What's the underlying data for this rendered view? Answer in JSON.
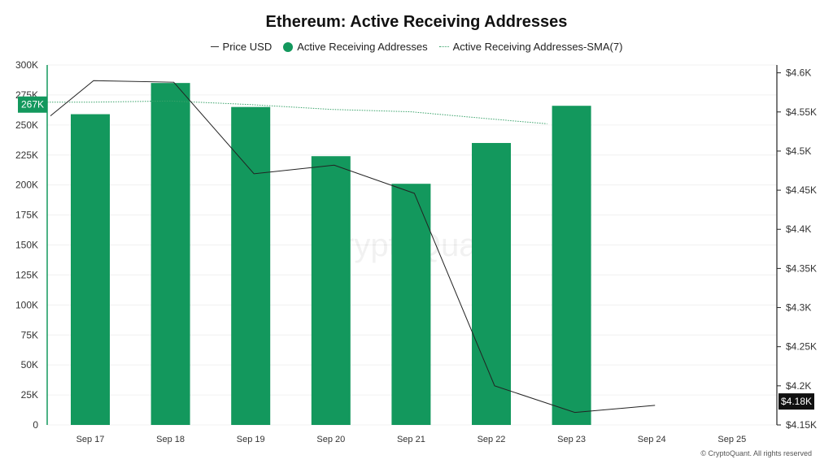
{
  "chart_data": {
    "type": "bar",
    "title": "Ethereum: Active Receiving Addresses",
    "categories": [
      "Sep 17",
      "Sep 18",
      "Sep 19",
      "Sep 20",
      "Sep 21",
      "Sep 22",
      "Sep 23",
      "Sep 24",
      "Sep 25"
    ],
    "series": [
      {
        "name": "Active Receiving Addresses",
        "type": "bar",
        "axis": "left",
        "color": "#13985d",
        "values": [
          259000,
          285000,
          265000,
          224000,
          201000,
          235000,
          266000,
          null,
          null
        ]
      },
      {
        "name": "Price USD",
        "type": "line",
        "axis": "right",
        "color": "#222222",
        "x_offset": 0.0,
        "start_value": 4545,
        "values": [
          4590,
          4588,
          4471,
          4482,
          4446,
          4200,
          4166,
          4175,
          null
        ]
      },
      {
        "name": "Active Receiving Addresses-SMA(7)",
        "type": "line",
        "style": "dotted",
        "axis": "left",
        "color": "#3aa36b",
        "start_value": 269000,
        "values": [
          269000,
          270000,
          267000,
          263000,
          261000,
          255000,
          251000,
          null,
          null
        ]
      }
    ],
    "left_axis": {
      "ylim": [
        0,
        300000
      ],
      "ticks": [
        0,
        25000,
        50000,
        75000,
        100000,
        125000,
        150000,
        175000,
        200000,
        225000,
        250000,
        275000,
        300000
      ],
      "tick_labels": [
        "0",
        "25K",
        "50K",
        "75K",
        "100K",
        "125K",
        "150K",
        "175K",
        "200K",
        "225K",
        "250K",
        "275K",
        "300K"
      ],
      "current_value_label": "267K",
      "current_value": 267000
    },
    "right_axis": {
      "ylim": [
        4150,
        4610
      ],
      "ticks": [
        4150,
        4200,
        4250,
        4300,
        4350,
        4400,
        4450,
        4500,
        4550,
        4600
      ],
      "tick_labels": [
        "$4.15K",
        "$4.2K",
        "$4.25K",
        "$4.3K",
        "$4.35K",
        "$4.4K",
        "$4.45K",
        "$4.5K",
        "$4.55K",
        "$4.6K"
      ],
      "current_value_label": "$4.18K",
      "current_value": 4180
    },
    "grid": true,
    "legend_position": "top-center",
    "watermark": "CryptoQuant"
  },
  "legend": {
    "items": [
      {
        "label": "Price USD"
      },
      {
        "label": "Active Receiving Addresses"
      },
      {
        "label": "Active Receiving Addresses-SMA(7)"
      }
    ]
  },
  "footer": {
    "copyright": "© CryptoQuant. All rights reserved"
  }
}
